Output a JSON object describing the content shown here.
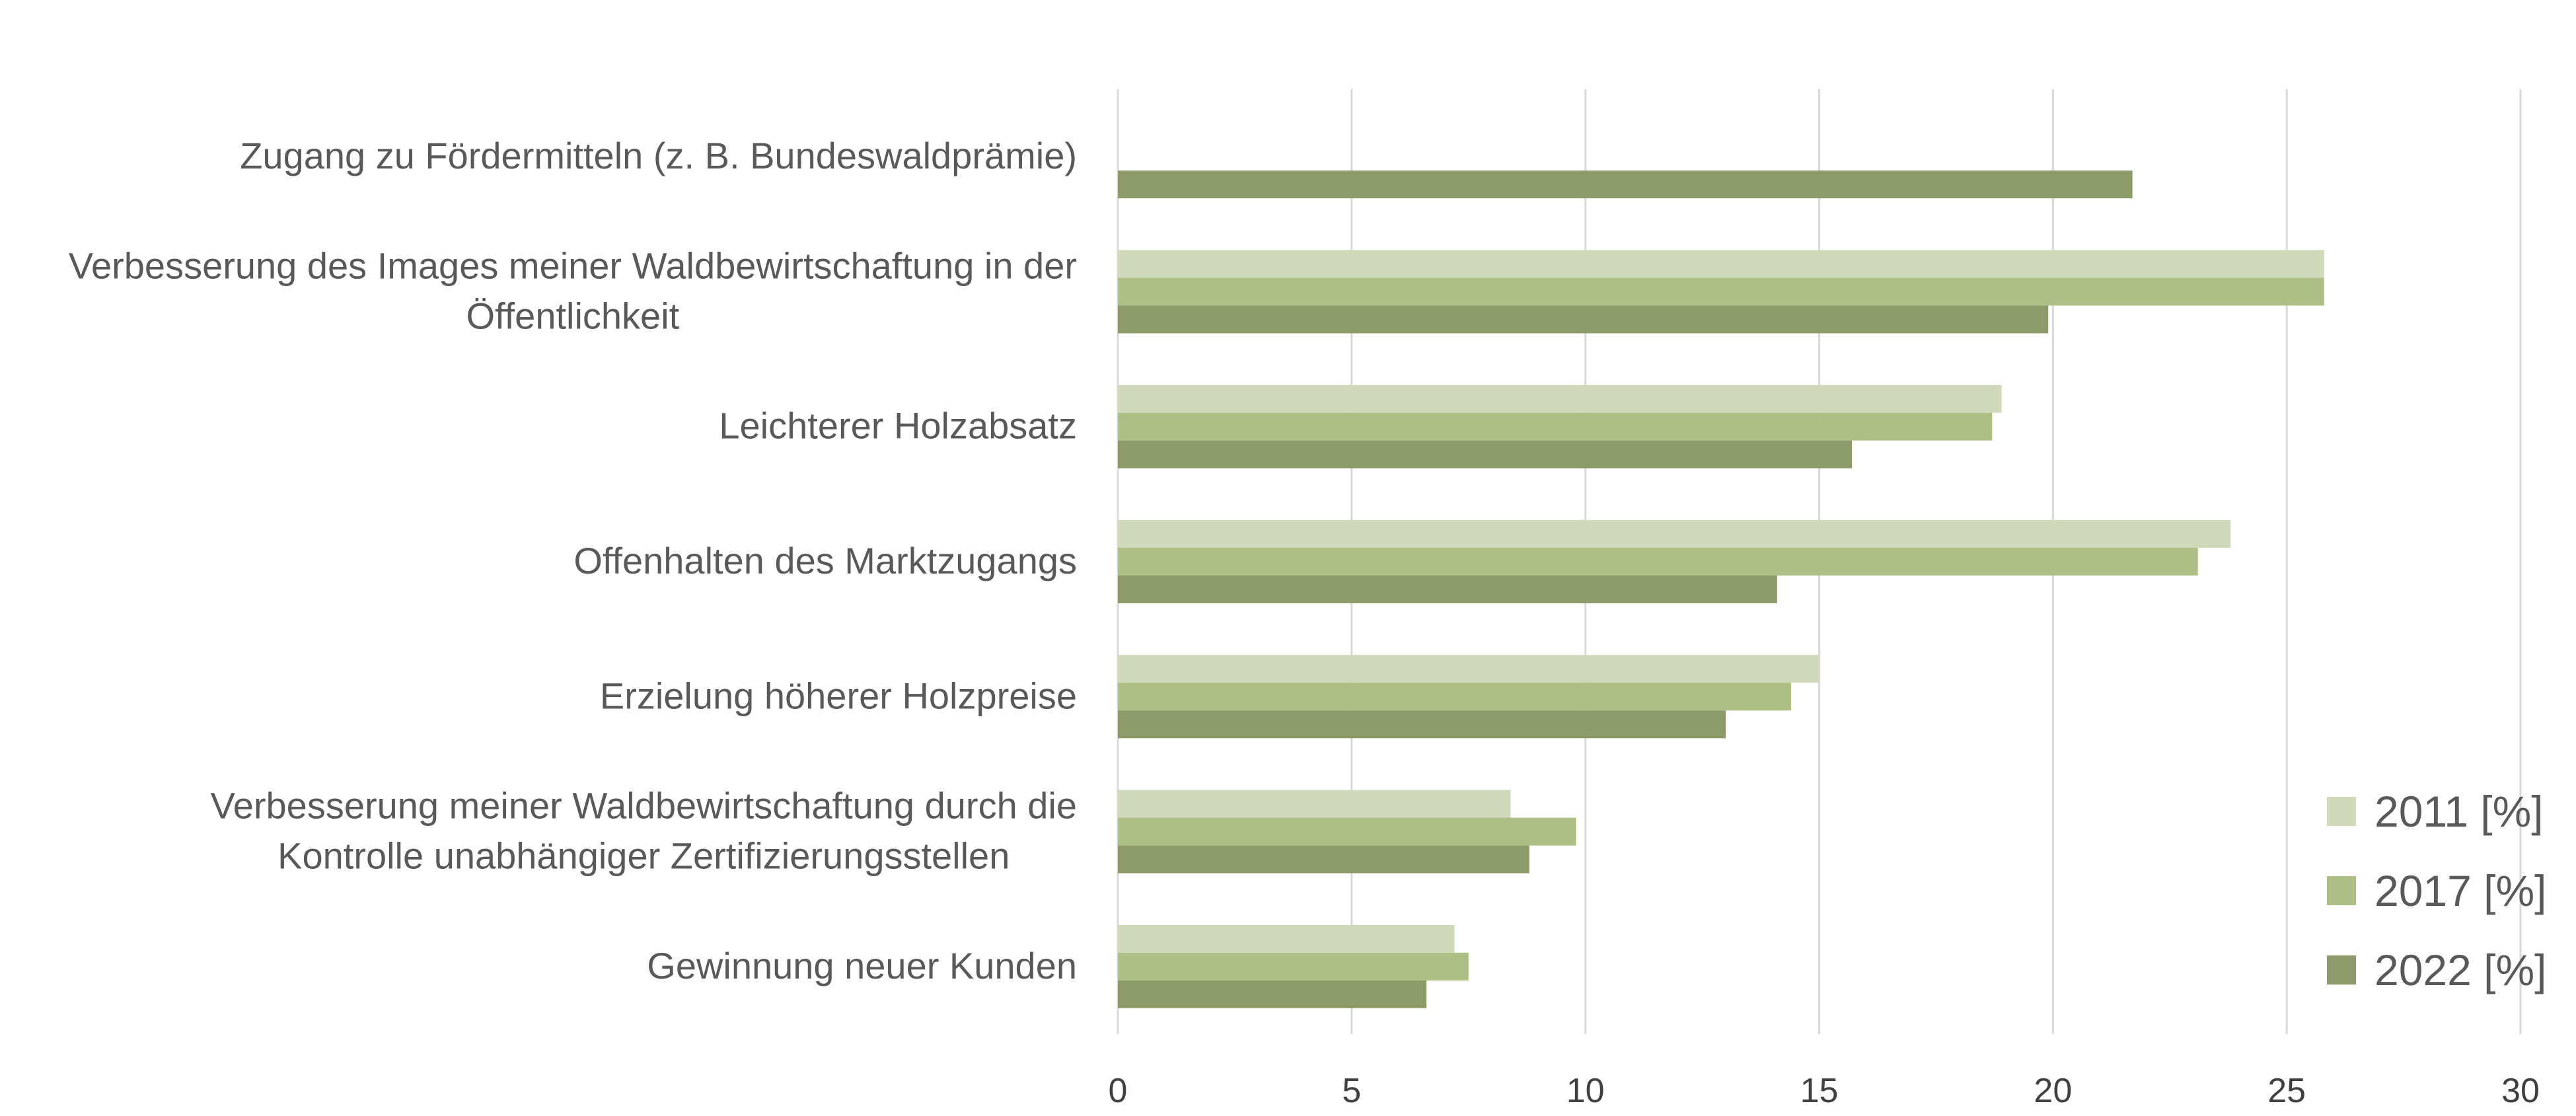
{
  "chart_data": {
    "type": "bar",
    "orientation": "horizontal",
    "categories": [
      [
        "Zugang zu Fördermitteln (z. B. Bundeswaldprämie)"
      ],
      [
        "Verbesserung des Images meiner Waldbewirtschaftung in der",
        "Öffentlichkeit"
      ],
      [
        "Leichterer Holzabsatz"
      ],
      [
        "Offenhalten des Marktzugangs"
      ],
      [
        "Erzielung höherer Holzpreise"
      ],
      [
        "Verbesserung meiner Waldbewirtschaftung durch die",
        "Kontrolle unabhängiger Zertifizierungsstellen"
      ],
      [
        "Gewinnung neuer Kunden"
      ]
    ],
    "series": [
      {
        "name": "2011 [%]",
        "color": "#d0dabb",
        "values": [
          null,
          25.8,
          18.9,
          23.8,
          15.0,
          8.4,
          7.2
        ]
      },
      {
        "name": "2017 [%]",
        "color": "#adbf84",
        "values": [
          null,
          25.8,
          18.7,
          23.1,
          14.4,
          9.8,
          7.5
        ]
      },
      {
        "name": "2022 [%]",
        "color": "#8d9b6a",
        "values": [
          21.7,
          19.9,
          15.7,
          14.1,
          13.0,
          8.8,
          6.6
        ]
      }
    ],
    "xlim": [
      0,
      30
    ],
    "xticks": [
      "0",
      "5",
      "10",
      "15",
      "20",
      "25",
      "30"
    ],
    "grid": true,
    "legend_position": "right"
  }
}
